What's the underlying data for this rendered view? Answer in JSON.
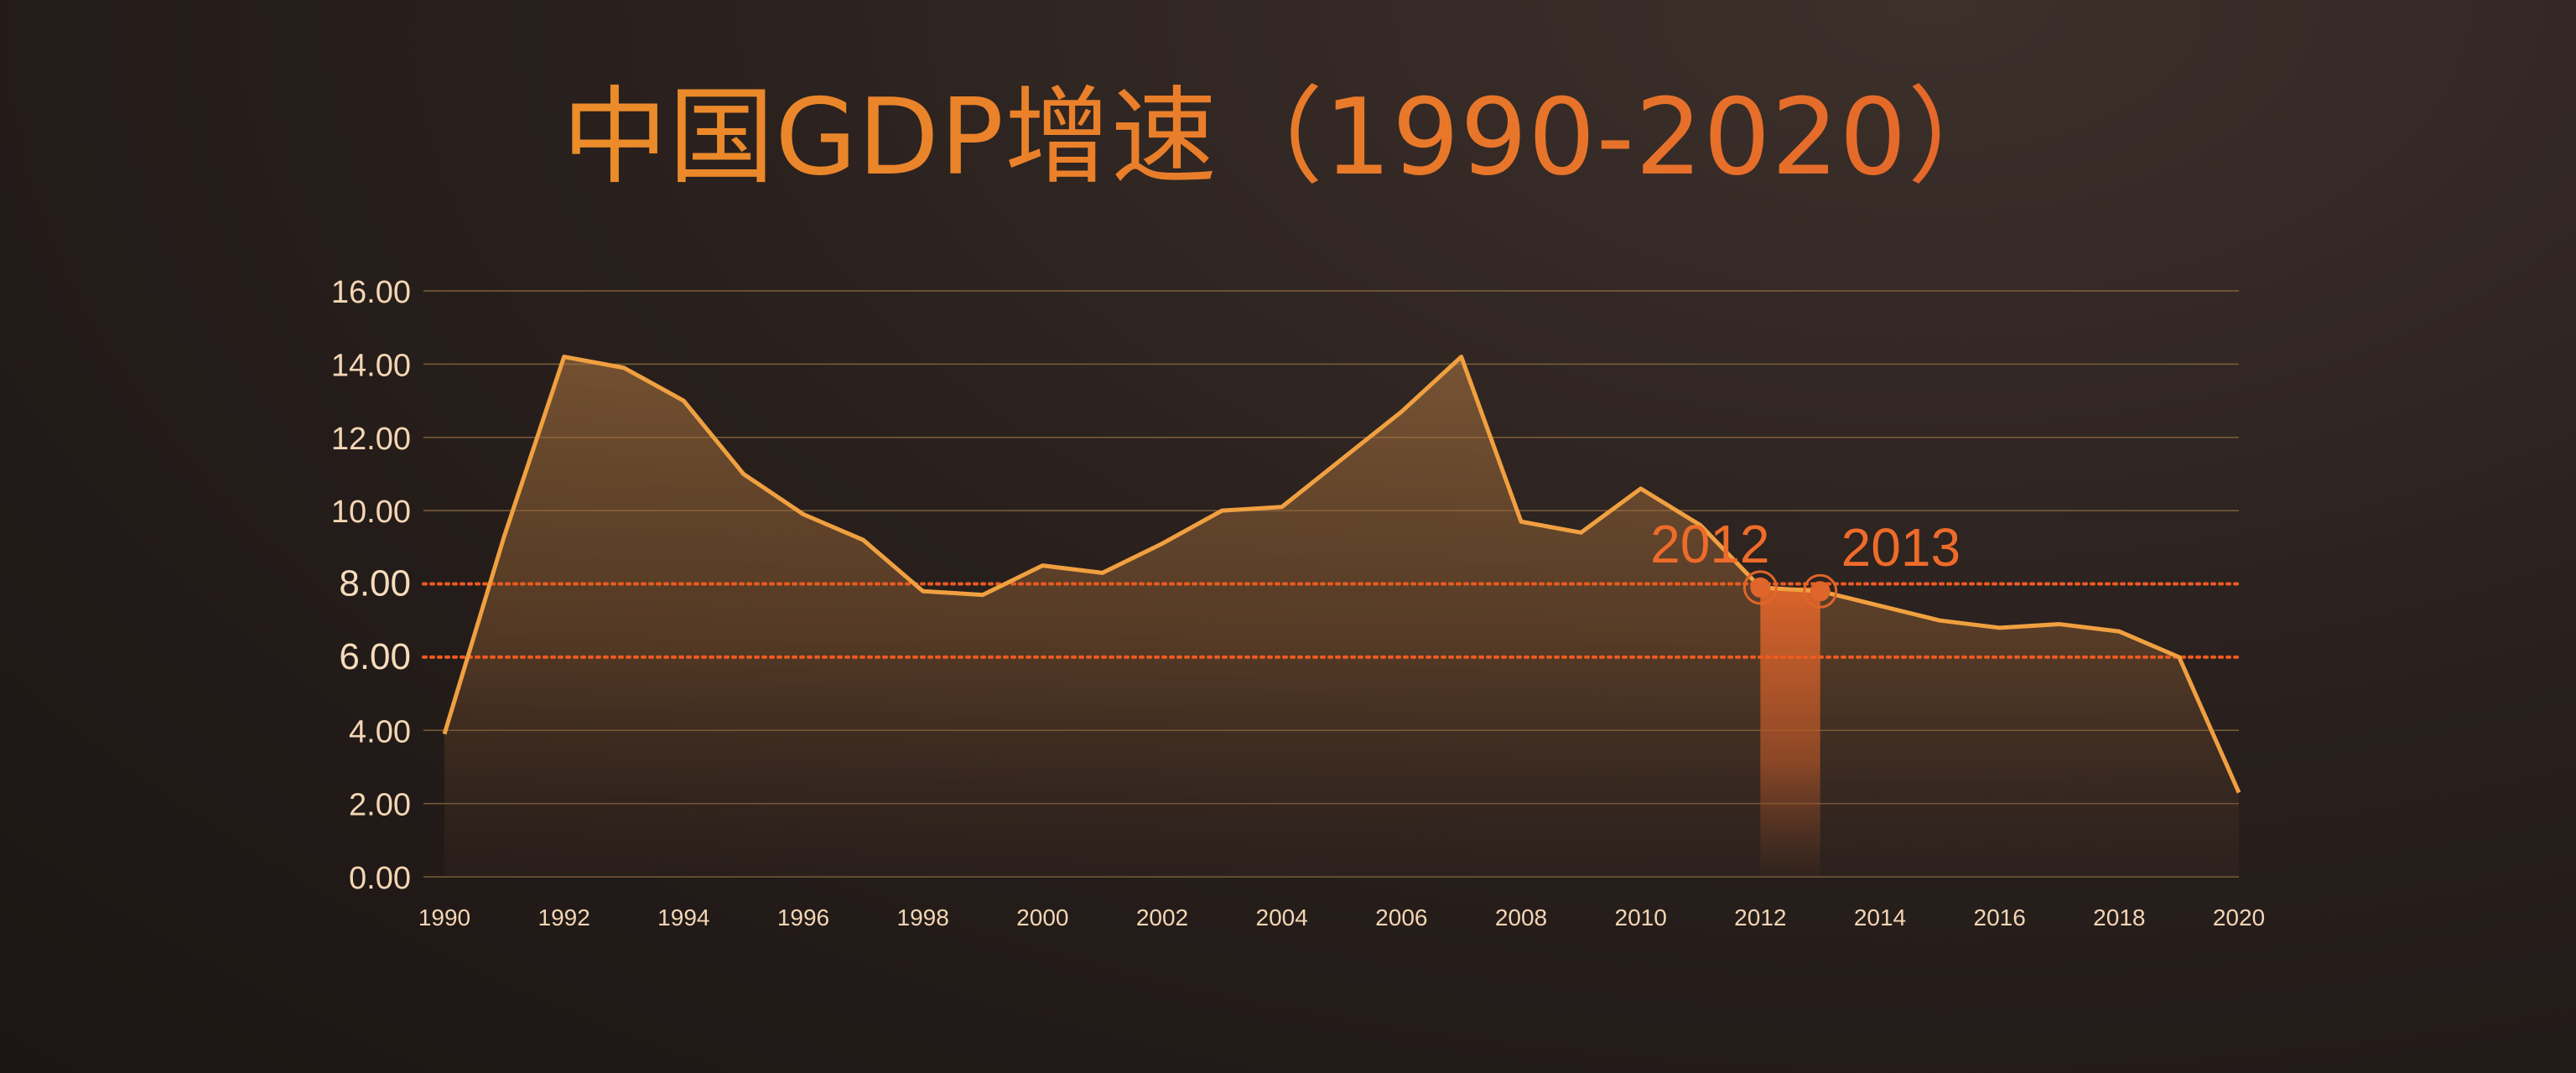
{
  "title": "中国GDP增速（1990-2020）",
  "colors": {
    "line": "#f0a040",
    "reference": "#ee5a1e",
    "highlight": "#e0652a",
    "grid": "#8a6a40"
  },
  "chart_data": {
    "type": "area",
    "title": "中国GDP增速（1990-2020）",
    "xlabel": "",
    "ylabel": "",
    "x_ticks": [
      "1990",
      "1992",
      "1994",
      "1996",
      "1998",
      "2000",
      "2002",
      "2004",
      "2006",
      "2008",
      "2010",
      "2012",
      "2014",
      "2016",
      "2018",
      "2020"
    ],
    "y_ticks": [
      "0.00",
      "2.00",
      "4.00",
      "6.00",
      "8.00",
      "10.00",
      "12.00",
      "14.00",
      "16.00"
    ],
    "ylim": [
      0,
      16
    ],
    "xlim": [
      1990,
      2020
    ],
    "grid": true,
    "legend": "none",
    "series": [
      {
        "x": [
          1990,
          1991,
          1992,
          1993,
          1994,
          1995,
          1996,
          1997,
          1998,
          1999,
          2000,
          2001,
          2002,
          2003,
          2004,
          2005,
          2006,
          2007,
          2008,
          2009,
          2010,
          2011,
          2012,
          2013,
          2014,
          2015,
          2016,
          2017,
          2018,
          2019,
          2020
        ],
        "values": [
          3.9,
          9.3,
          14.2,
          13.9,
          13.0,
          11.0,
          9.9,
          9.2,
          7.8,
          7.7,
          8.5,
          8.3,
          9.1,
          10.0,
          10.1,
          11.4,
          12.7,
          14.2,
          9.7,
          9.4,
          10.6,
          9.6,
          7.9,
          7.8,
          7.4,
          7.0,
          6.8,
          6.9,
          6.7,
          6.0,
          2.3
        ]
      }
    ],
    "reference_lines": [
      8.0,
      6.0
    ],
    "highlights": [
      {
        "year": 2012,
        "label": "2012",
        "value": 7.9
      },
      {
        "year": 2013,
        "label": "2013",
        "value": 7.8
      }
    ]
  }
}
